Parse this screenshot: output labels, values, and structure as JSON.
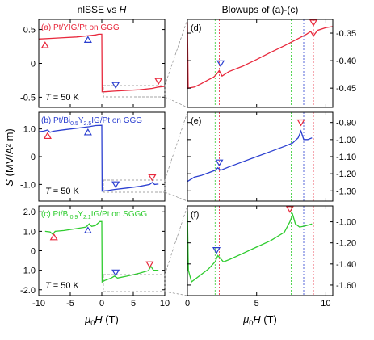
{
  "figure": {
    "left_title": "nlSSE vs ",
    "left_title_var": "H",
    "right_title": "Blowups of (a)-(c)",
    "ylabel": "(MV/A² m)",
    "ylabel_symbol": "S",
    "xlabel_mu": "μ",
    "xlabel_sub": "0",
    "xlabel_var": "H",
    "xlabel_unit": " (T)"
  },
  "chart_data": [
    {
      "panel": "a",
      "type": "line",
      "side": "left",
      "label": "(a) Pt/YIG/Pt on GGG",
      "temperature": "T = 50 K",
      "color": "#e8283c",
      "xlim": [
        -10,
        10
      ],
      "ylim": [
        -0.65,
        0.65
      ],
      "xticks": [
        -10,
        -5,
        0,
        5,
        10
      ],
      "xtick_labels": [
        "",
        "",
        "",
        "",
        ""
      ],
      "yticks": [
        0.5,
        0,
        -0.5
      ],
      "ytick_labels": [
        "0.5",
        "0",
        "-0.5"
      ],
      "x": [
        -10,
        -8,
        -6,
        -4,
        -2,
        -1,
        -0.5,
        0,
        0.05,
        0.5,
        2,
        4,
        6,
        8,
        9,
        10
      ],
      "y": [
        0.36,
        0.37,
        0.38,
        0.39,
        0.41,
        0.42,
        0.43,
        0.43,
        -0.42,
        -0.42,
        -0.41,
        -0.4,
        -0.39,
        -0.37,
        -0.35,
        -0.34
      ],
      "markers": [
        {
          "x": -9,
          "y": 0.27,
          "color": "#e8283c",
          "direction": "up"
        },
        {
          "x": -2.2,
          "y": 0.35,
          "color": "#2b3fd0",
          "direction": "up"
        },
        {
          "x": 2.2,
          "y": -0.32,
          "color": "#2b3fd0",
          "direction": "down"
        },
        {
          "x": 9,
          "y": -0.26,
          "color": "#e8283c",
          "direction": "down"
        }
      ]
    },
    {
      "panel": "b",
      "type": "line",
      "side": "left",
      "label": "(b) Pt/Bi0.5Y2.5IG/Pt on GGG",
      "label_parts": [
        "(b) Pt/Bi",
        "0.5",
        "Y",
        "2.5",
        "IG/Pt on GGG"
      ],
      "temperature": "T = 50 K",
      "color": "#2b3fd0",
      "xlim": [
        -10,
        10
      ],
      "ylim": [
        -1.6,
        1.6
      ],
      "xticks": [
        -10,
        -5,
        0,
        5,
        10
      ],
      "xtick_labels": [
        "",
        "",
        "",
        "",
        ""
      ],
      "yticks": [
        1,
        0,
        -1
      ],
      "ytick_labels": [
        "1.0",
        "0",
        "-1.0"
      ],
      "x": [
        -10,
        -9.2,
        -8.6,
        -8.2,
        -7.6,
        -6,
        -4,
        -2,
        -1,
        0,
        0.05,
        1,
        2,
        4,
        6,
        7.6,
        8,
        8.4,
        8.8,
        9
      ],
      "y": [
        0.9,
        0.92,
        0.96,
        0.88,
        0.92,
        0.97,
        1.02,
        1.08,
        1.12,
        1.13,
        -1.24,
        -1.22,
        -1.18,
        -1.13,
        -1.07,
        -1.0,
        -0.93,
        -1.0,
        -0.99,
        -0.99
      ],
      "markers": [
        {
          "x": -8.6,
          "y": 0.75,
          "color": "#e8283c",
          "direction": "up"
        },
        {
          "x": -2.2,
          "y": 0.88,
          "color": "#2b3fd0",
          "direction": "up"
        },
        {
          "x": 2.2,
          "y": -1.0,
          "color": "#2b3fd0",
          "direction": "down"
        },
        {
          "x": 8,
          "y": -0.75,
          "color": "#e8283c",
          "direction": "down"
        }
      ]
    },
    {
      "panel": "c",
      "type": "line",
      "side": "left",
      "label": "(c) Pt/Bi0.9Y2.1IG/Pt on SGGG",
      "label_parts": [
        "(c) Pt/Bi",
        "0.9",
        "Y",
        "2.1",
        "IG/Pt on SGGG"
      ],
      "temperature": "T = 50 K",
      "color": "#2ecc2e",
      "xlim": [
        -10,
        10
      ],
      "ylim": [
        -2.3,
        2.3
      ],
      "xticks": [
        -10,
        -5,
        0,
        5,
        10
      ],
      "xtick_labels": [
        "-10",
        "-5",
        "0",
        "5",
        "10"
      ],
      "yticks": [
        2,
        1,
        0,
        -1,
        -2
      ],
      "ytick_labels": [
        "2.0",
        "1.0",
        "0",
        "-1.0",
        "-2.0"
      ],
      "x": [
        -9,
        -8.2,
        -7.8,
        -7.4,
        -6,
        -4,
        -2.5,
        -2,
        -1.6,
        -1,
        -0.3,
        0,
        0.05,
        0.5,
        1.5,
        2,
        2.5,
        4,
        6,
        7.4,
        7.8,
        8.2,
        9
      ],
      "y": [
        1.0,
        0.97,
        0.85,
        1.0,
        1.04,
        1.14,
        1.22,
        1.38,
        1.25,
        1.3,
        1.5,
        1.5,
        -1.6,
        -1.52,
        -1.4,
        -1.3,
        -1.4,
        -1.3,
        -1.15,
        -1.02,
        -0.8,
        -1.0,
        -1.0
      ],
      "markers": [
        {
          "x": -7.6,
          "y": 0.7,
          "color": "#e8283c",
          "direction": "up"
        },
        {
          "x": -2.2,
          "y": 1.05,
          "color": "#2b3fd0",
          "direction": "up"
        },
        {
          "x": 2.2,
          "y": -1.12,
          "color": "#2b3fd0",
          "direction": "down"
        },
        {
          "x": 7.6,
          "y": -0.7,
          "color": "#e8283c",
          "direction": "down"
        }
      ]
    },
    {
      "panel": "d",
      "type": "line",
      "side": "right",
      "label": "(d)",
      "color": "#e8283c",
      "xlim": [
        0,
        10.5
      ],
      "ylim": [
        -0.485,
        -0.325
      ],
      "xticks": [
        0,
        5,
        10
      ],
      "xtick_labels": [
        "",
        "",
        ""
      ],
      "yticks": [
        -0.35,
        -0.4,
        -0.45
      ],
      "ytick_labels": [
        "-0.35",
        "-0.40",
        "-0.45"
      ],
      "vlines": [
        {
          "x": 2.0,
          "color": "#2ecc2e"
        },
        {
          "x": 2.3,
          "color": "#e8283c"
        },
        {
          "x": 7.5,
          "color": "#2ecc2e"
        },
        {
          "x": 8.4,
          "color": "#2b3fd0"
        },
        {
          "x": 9.1,
          "color": "#e8283c"
        }
      ],
      "x": [
        0,
        0.06,
        0.5,
        1.0,
        1.5,
        1.9,
        2.1,
        2.3,
        2.5,
        3,
        4,
        5,
        6,
        7,
        8,
        8.6,
        8.9,
        9.1,
        9.4,
        10,
        10.5
      ],
      "y": [
        -0.33,
        -0.45,
        -0.448,
        -0.442,
        -0.435,
        -0.43,
        -0.425,
        -0.418,
        -0.428,
        -0.42,
        -0.41,
        -0.398,
        -0.385,
        -0.373,
        -0.36,
        -0.352,
        -0.347,
        -0.355,
        -0.345,
        -0.34,
        -0.338
      ],
      "markers": [
        {
          "x": 2.4,
          "y": -0.405,
          "color": "#2b3fd0",
          "direction": "down"
        },
        {
          "x": 9.1,
          "y": -0.331,
          "color": "#e8283c",
          "direction": "down"
        }
      ]
    },
    {
      "panel": "e",
      "type": "line",
      "side": "right",
      "label": "(e)",
      "color": "#2b3fd0",
      "xlim": [
        0,
        10.5
      ],
      "ylim": [
        -1.36,
        -0.84
      ],
      "xticks": [
        0,
        5,
        10
      ],
      "xtick_labels": [
        "",
        "",
        ""
      ],
      "yticks": [
        -0.9,
        -1.0,
        -1.1,
        -1.2,
        -1.3
      ],
      "ytick_labels": [
        "-0.90",
        "-1.00",
        "-1.10",
        "-1.20",
        "-1.30"
      ],
      "vlines": [
        {
          "x": 2.0,
          "color": "#2ecc2e"
        },
        {
          "x": 2.3,
          "color": "#e8283c"
        },
        {
          "x": 7.5,
          "color": "#2ecc2e"
        },
        {
          "x": 8.4,
          "color": "#2b3fd0"
        },
        {
          "x": 9.1,
          "color": "#e8283c"
        }
      ],
      "x": [
        0,
        0.5,
        1,
        1.5,
        2,
        2.2,
        2.4,
        3,
        4,
        5,
        6,
        7,
        7.6,
        8,
        8.2,
        8.4,
        8.7,
        9
      ],
      "y": [
        -1.245,
        -1.22,
        -1.21,
        -1.195,
        -1.18,
        -1.165,
        -1.18,
        -1.16,
        -1.13,
        -1.1,
        -1.07,
        -1.04,
        -1.02,
        -0.99,
        -0.95,
        -1.0,
        -1.0,
        -0.99
      ],
      "markers": [
        {
          "x": 2.3,
          "y": -1.135,
          "color": "#2b3fd0",
          "direction": "down"
        },
        {
          "x": 8.2,
          "y": -0.9,
          "color": "#e8283c",
          "direction": "down"
        }
      ]
    },
    {
      "panel": "f",
      "type": "line",
      "side": "right",
      "label": "(f)",
      "color": "#2ecc2e",
      "xlim": [
        0,
        10.5
      ],
      "ylim": [
        -1.7,
        -0.85
      ],
      "xticks": [
        0,
        5,
        10
      ],
      "xtick_labels": [
        "0",
        "5",
        "10"
      ],
      "yticks": [
        -1.0,
        -1.2,
        -1.4,
        -1.6
      ],
      "ytick_labels": [
        "-1.00",
        "-1.20",
        "-1.40",
        "-1.60"
      ],
      "vlines": [
        {
          "x": 2.0,
          "color": "#2ecc2e"
        },
        {
          "x": 2.3,
          "color": "#e8283c"
        },
        {
          "x": 7.5,
          "color": "#2ecc2e"
        },
        {
          "x": 8.4,
          "color": "#2b3fd0"
        },
        {
          "x": 9.1,
          "color": "#e8283c"
        }
      ],
      "x": [
        0,
        0.07,
        0.3,
        0.8,
        1.5,
        2,
        2.2,
        2.6,
        3,
        4,
        5,
        6,
        7,
        7.4,
        7.6,
        7.8,
        8.1,
        8.5,
        9
      ],
      "y": [
        -0.9,
        -1.46,
        -1.57,
        -1.52,
        -1.45,
        -1.38,
        -1.32,
        -1.38,
        -1.36,
        -1.3,
        -1.24,
        -1.18,
        -1.1,
        -1.0,
        -0.93,
        -1.02,
        -1.05,
        -1.04,
        -1.02
      ],
      "markers": [
        {
          "x": 2.1,
          "y": -1.27,
          "color": "#2b3fd0",
          "direction": "down"
        },
        {
          "x": 7.4,
          "y": -0.88,
          "color": "#e8283c",
          "direction": "down"
        }
      ]
    }
  ]
}
